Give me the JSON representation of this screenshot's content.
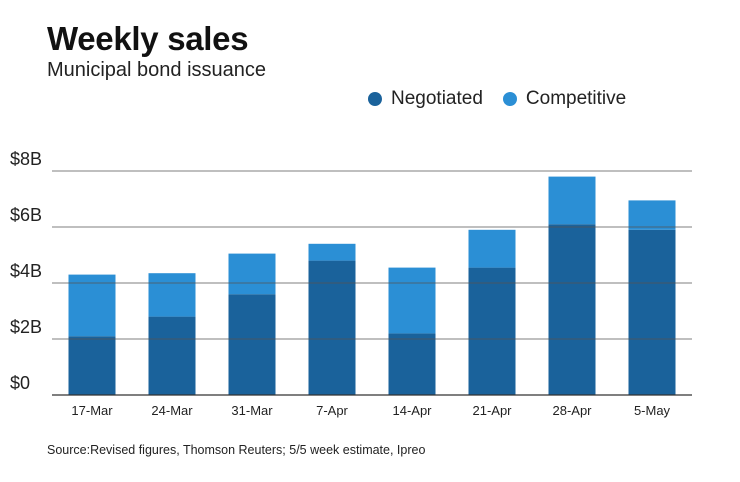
{
  "chart_data": {
    "type": "bar",
    "stacked": true,
    "title": "Weekly sales",
    "subtitle": "Municipal bond issuance",
    "categories": [
      "17-Mar",
      "24-Mar",
      "31-Mar",
      "7-Apr",
      "14-Apr",
      "21-Apr",
      "28-Apr",
      "5-May"
    ],
    "series": [
      {
        "name": "Negotiated",
        "color": "#1a629b",
        "values": [
          2.1,
          2.8,
          3.6,
          4.8,
          2.2,
          4.55,
          6.1,
          5.9
        ]
      },
      {
        "name": "Competitive",
        "color": "#2b8fd5",
        "values": [
          2.2,
          1.55,
          1.45,
          0.6,
          2.35,
          1.35,
          1.7,
          1.05
        ]
      }
    ],
    "ylim": [
      0,
      8
    ],
    "yticks": [
      0,
      2,
      4,
      6,
      8
    ],
    "ytick_labels": [
      "$0",
      "$2B",
      "$4B",
      "$6B",
      "$8B"
    ],
    "xlabel": "",
    "ylabel": "",
    "legend_position": "top-right",
    "source": "Source:Revised figures, Thomson Reuters; 5/5 week estimate, Ipreo"
  }
}
